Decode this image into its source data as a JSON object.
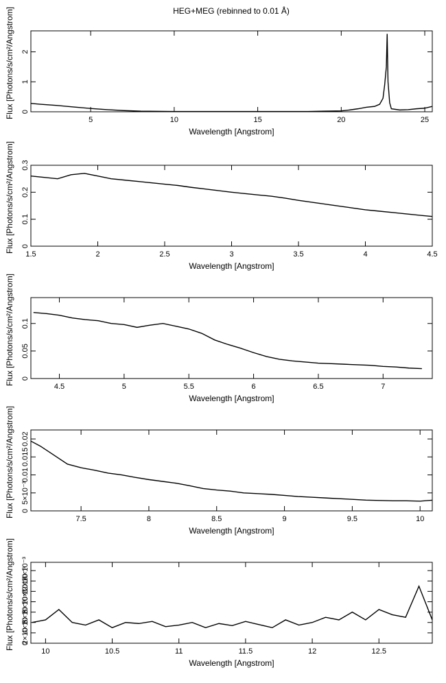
{
  "title": "HEG+MEG (rebinned to 0.01 Å)",
  "chart_data": [
    {
      "type": "line",
      "x_label": "Wavelength [Angstrom]",
      "y_label": "Flux [Photons/s/cm²/Angstrom]",
      "color": "#000000",
      "x": [
        1.42,
        2,
        3,
        4,
        5,
        6,
        7,
        8,
        10,
        12,
        14,
        16,
        18,
        19,
        20,
        20.5,
        21,
        21.5,
        22,
        22.3,
        22.5,
        22.6,
        22.7,
        22.75,
        22.8,
        22.9,
        23,
        23.5,
        24,
        24.5,
        25,
        25.45
      ],
      "values": [
        0.28,
        0.25,
        0.21,
        0.16,
        0.11,
        0.07,
        0.04,
        0.02,
        0.01,
        0.01,
        0.01,
        0.01,
        0.01,
        0.02,
        0.03,
        0.06,
        0.1,
        0.15,
        0.18,
        0.25,
        0.45,
        0.9,
        1.5,
        2.6,
        1.0,
        0.3,
        0.1,
        0.06,
        0.07,
        0.1,
        0.12,
        0.18
      ],
      "xlim": [
        1.42,
        25.45
      ],
      "xticks": [
        5,
        10,
        15,
        20,
        25
      ],
      "ylim": [
        0,
        2.7
      ],
      "yticks": [
        0,
        1,
        2
      ]
    },
    {
      "type": "line",
      "x_label": "Wavelength [Angstrom]",
      "y_label": "Flux [Photons/s/cm²/Angstrom]",
      "color": "#000000",
      "x": [
        1.5,
        1.6,
        1.7,
        1.8,
        1.9,
        2.0,
        2.1,
        2.2,
        2.3,
        2.4,
        2.5,
        2.6,
        2.7,
        2.8,
        2.9,
        3.0,
        3.1,
        3.2,
        3.3,
        3.4,
        3.5,
        3.6,
        3.7,
        3.8,
        3.9,
        4.0,
        4.1,
        4.2,
        4.3,
        4.4,
        4.5
      ],
      "values": [
        0.26,
        0.255,
        0.25,
        0.265,
        0.27,
        0.26,
        0.25,
        0.245,
        0.24,
        0.235,
        0.23,
        0.225,
        0.218,
        0.212,
        0.206,
        0.2,
        0.195,
        0.19,
        0.185,
        0.178,
        0.17,
        0.163,
        0.156,
        0.149,
        0.142,
        0.135,
        0.13,
        0.125,
        0.12,
        0.115,
        0.11
      ],
      "xlim": [
        1.5,
        4.5
      ],
      "xticks": [
        1.5,
        2,
        2.5,
        3,
        3.5,
        4,
        4.5
      ],
      "ylim": [
        0,
        0.3
      ],
      "yticks": [
        0,
        0.1,
        0.2,
        0.3
      ]
    },
    {
      "type": "line",
      "x_label": "Wavelength [Angstrom]",
      "y_label": "Flux [Photons/s/cm²/Angstrom]",
      "color": "#000000",
      "x": [
        4.3,
        4.4,
        4.5,
        4.6,
        4.7,
        4.8,
        4.9,
        5.0,
        5.1,
        5.2,
        5.3,
        5.4,
        5.5,
        5.6,
        5.7,
        5.8,
        5.9,
        6.0,
        6.1,
        6.2,
        6.3,
        6.4,
        6.5,
        6.6,
        6.7,
        6.8,
        6.9,
        7.0,
        7.1,
        7.2,
        7.3
      ],
      "values": [
        0.12,
        0.118,
        0.115,
        0.11,
        0.107,
        0.105,
        0.1,
        0.098,
        0.093,
        0.097,
        0.1,
        0.095,
        0.09,
        0.082,
        0.07,
        0.062,
        0.055,
        0.047,
        0.04,
        0.035,
        0.032,
        0.03,
        0.028,
        0.027,
        0.026,
        0.025,
        0.024,
        0.022,
        0.021,
        0.019,
        0.018
      ],
      "xlim": [
        4.28,
        7.38
      ],
      "xticks": [
        4.5,
        5,
        5.5,
        6,
        6.5,
        7
      ],
      "ylim": [
        0,
        0.147
      ],
      "yticks": [
        0,
        0.05,
        0.1
      ]
    },
    {
      "type": "line",
      "x_label": "Wavelength [Angstrom]",
      "y_label": "Flux [Photons/s/cm²/Angstrom]",
      "color": "#000000",
      "x": [
        7.1,
        7.2,
        7.3,
        7.4,
        7.5,
        7.6,
        7.7,
        7.8,
        7.9,
        8.0,
        8.1,
        8.2,
        8.3,
        8.4,
        8.5,
        8.6,
        8.7,
        8.8,
        8.9,
        9.0,
        9.1,
        9.2,
        9.3,
        9.4,
        9.5,
        9.6,
        9.7,
        9.8,
        9.9,
        10.0,
        10.1
      ],
      "values": [
        0.02,
        0.018,
        0.0155,
        0.013,
        0.012,
        0.0113,
        0.0105,
        0.01,
        0.0093,
        0.0087,
        0.0082,
        0.0077,
        0.007,
        0.0062,
        0.0058,
        0.0055,
        0.005,
        0.0048,
        0.0046,
        0.0043,
        0.004,
        0.0038,
        0.0036,
        0.0034,
        0.0032,
        0.003,
        0.0029,
        0.0028,
        0.0028,
        0.0027,
        0.003
      ],
      "xlim": [
        7.13,
        10.09
      ],
      "xticks": [
        7.5,
        8,
        8.5,
        9,
        9.5,
        10
      ],
      "ylim": [
        0,
        0.0225
      ],
      "yticks": [
        0,
        {
          "value": 0.005,
          "label": "5×10⁻³"
        },
        0.01,
        0.015,
        0.02
      ]
    },
    {
      "type": "line",
      "x_label": "Wavelength [Angstrom]",
      "y_label": "Flux [Photons/s/cm²/Angstrom]",
      "color": "#000000",
      "x": [
        9.9,
        10.0,
        10.1,
        10.2,
        10.3,
        10.4,
        10.5,
        10.6,
        10.7,
        10.8,
        10.9,
        11.0,
        11.1,
        11.2,
        11.3,
        11.4,
        11.5,
        11.6,
        11.7,
        11.8,
        11.9,
        12.0,
        12.1,
        12.2,
        12.3,
        12.4,
        12.5,
        12.6,
        12.7,
        12.8,
        12.9
      ],
      "values": [
        0.004,
        0.0045,
        0.0065,
        0.004,
        0.0035,
        0.0045,
        0.003,
        0.004,
        0.0038,
        0.0042,
        0.0032,
        0.0035,
        0.004,
        0.003,
        0.0038,
        0.0034,
        0.0042,
        0.0036,
        0.003,
        0.0045,
        0.0035,
        0.004,
        0.005,
        0.0045,
        0.006,
        0.0045,
        0.0065,
        0.0055,
        0.005,
        0.011,
        0.0045
      ],
      "xlim": [
        9.89,
        12.9
      ],
      "xticks": [
        10,
        10.5,
        11,
        11.5,
        12,
        12.5
      ],
      "ylim": [
        0,
        0.0156
      ],
      "yticks": [
        0,
        {
          "value": 0.002,
          "label": "2×10⁻³"
        },
        {
          "value": 0.004,
          "label": "4×10⁻³"
        },
        {
          "value": 0.006,
          "label": "6×10⁻³"
        },
        {
          "value": 0.008,
          "label": "8×10⁻³"
        },
        {
          "value": 0.01,
          "label": "10×10⁻³"
        },
        {
          "value": 0.012,
          "label": "12×10⁻³"
        },
        {
          "value": 0.014,
          "label": "14×10⁻³"
        }
      ]
    }
  ]
}
